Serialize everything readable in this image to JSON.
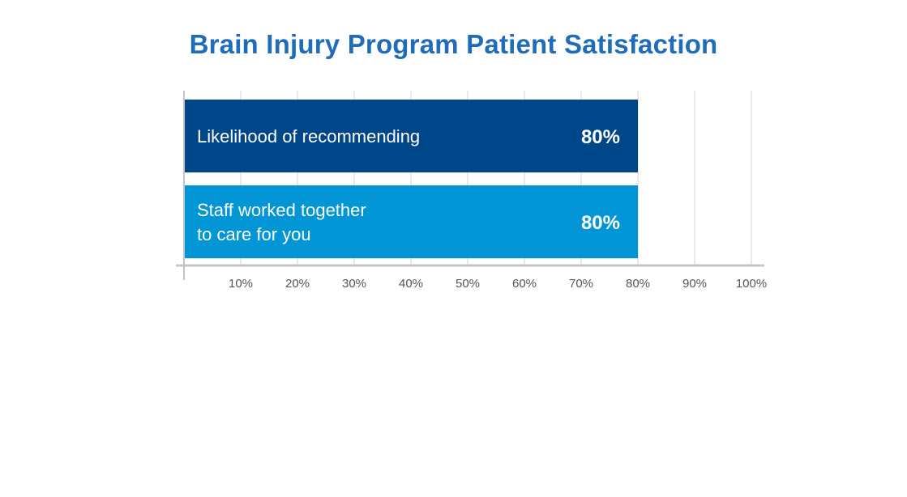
{
  "chart_data": {
    "type": "bar",
    "orientation": "horizontal",
    "title": "Brain Injury Program Patient Satisfaction",
    "categories": [
      [
        "Likelihood of recommending"
      ],
      [
        "Staff worked together",
        "to care for you"
      ]
    ],
    "values": [
      80,
      80
    ],
    "value_labels": [
      "80%",
      "80%"
    ],
    "bar_colors": [
      "#00478a",
      "#0396d6"
    ],
    "xlim": [
      0,
      100
    ],
    "xticks": [
      10,
      20,
      30,
      40,
      50,
      60,
      70,
      80,
      90,
      100
    ],
    "xtick_labels": [
      "10%",
      "20%",
      "30%",
      "40%",
      "50%",
      "60%",
      "70%",
      "80%",
      "90%",
      "100%"
    ],
    "grid": true,
    "legend": "none"
  },
  "colors": {
    "title": "#1f6db8",
    "grid": "#dcdcdc",
    "axis": "#c4c4c4",
    "tick_label": "#555555"
  }
}
